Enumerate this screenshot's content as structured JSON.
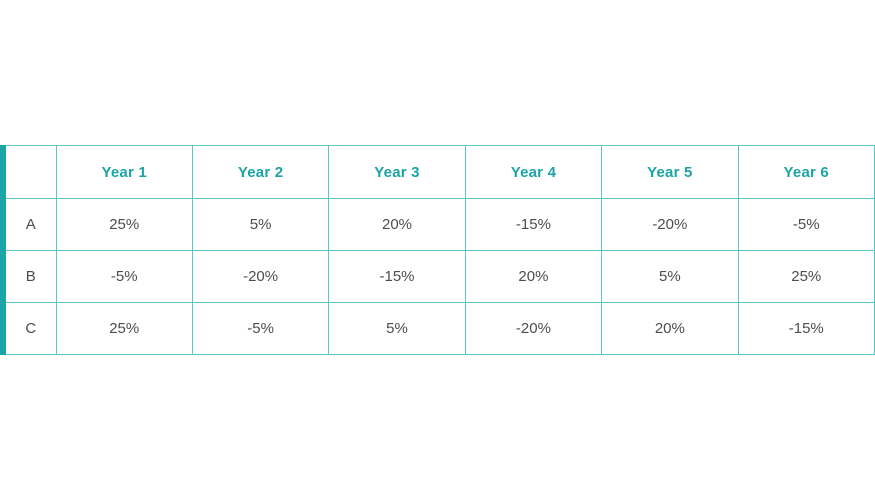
{
  "colors": {
    "accent": "#1ca5a5",
    "accent_text": "#1ca3a3",
    "grid": "#5cc5c5",
    "body_text": "#4d4d4d",
    "background": "#ffffff"
  },
  "chart_data": {
    "type": "table",
    "title": "",
    "columns": [
      "Year 1",
      "Year 2",
      "Year 3",
      "Year 4",
      "Year 5",
      "Year 6"
    ],
    "rows": [
      {
        "label": "A",
        "values": [
          "25%",
          "5%",
          "20%",
          "-15%",
          "-20%",
          "-5%"
        ]
      },
      {
        "label": "B",
        "values": [
          "-5%",
          "-20%",
          "-15%",
          "20%",
          "5%",
          "25%"
        ]
      },
      {
        "label": "C",
        "values": [
          "25%",
          "-5%",
          "5%",
          "-20%",
          "20%",
          "-15%"
        ]
      }
    ],
    "layout": {
      "corner_cell": "",
      "gridlines": true,
      "accent_left_bar": true
    }
  }
}
